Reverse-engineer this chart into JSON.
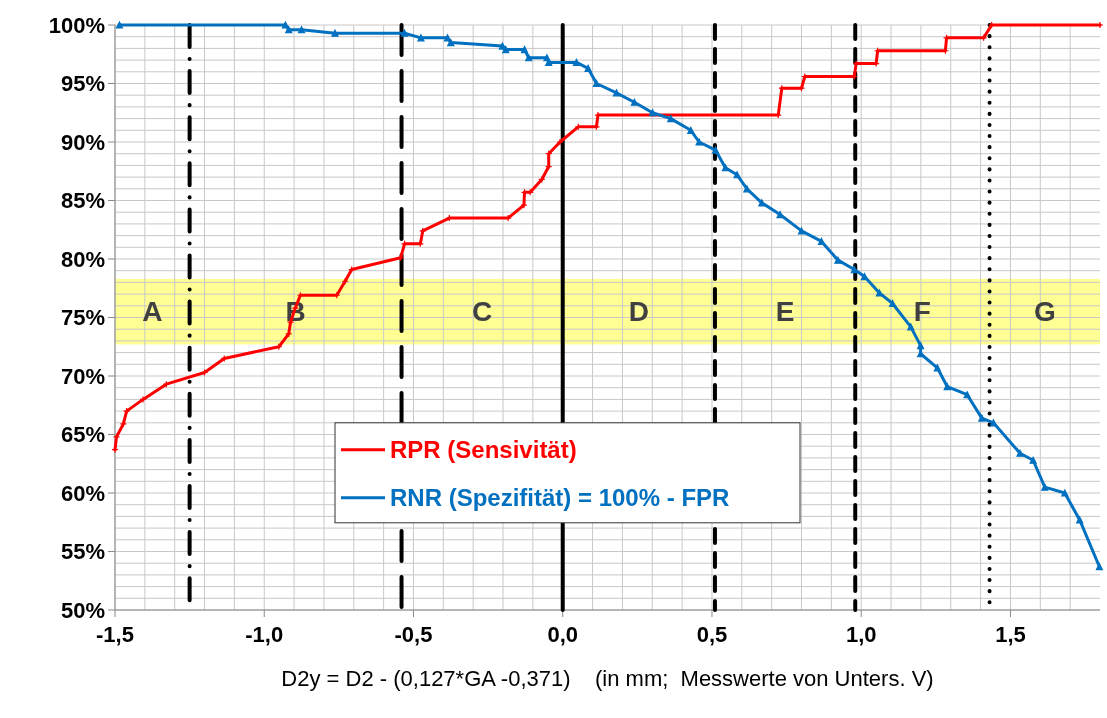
{
  "chart_data": {
    "type": "line",
    "xlabel": "D2y = D2 - (0,127*GA -0,371)    (in mm;  Messwerte von Unters. V)",
    "xlim": [
      -1.5,
      1.8
    ],
    "xticks": [
      {
        "value": -1.5,
        "label": "-1,5"
      },
      {
        "value": -1.4,
        "label": null
      },
      {
        "value": -1.3,
        "label": null
      },
      {
        "value": -1.2,
        "label": null
      },
      {
        "value": -1.1,
        "label": null
      },
      {
        "value": -1.0,
        "label": "-1,0"
      },
      {
        "value": -0.9,
        "label": null
      },
      {
        "value": -0.8,
        "label": null
      },
      {
        "value": -0.7,
        "label": null
      },
      {
        "value": -0.6,
        "label": null
      },
      {
        "value": -0.5,
        "label": "-0,5"
      },
      {
        "value": -0.4,
        "label": null
      },
      {
        "value": -0.3,
        "label": null
      },
      {
        "value": -0.2,
        "label": null
      },
      {
        "value": -0.1,
        "label": null
      },
      {
        "value": 0,
        "label": "0,0"
      },
      {
        "value": 0.1,
        "label": null
      },
      {
        "value": 0.2,
        "label": null
      },
      {
        "value": 0.3,
        "label": null
      },
      {
        "value": 0.4,
        "label": null
      },
      {
        "value": 0.5,
        "label": "0,5"
      },
      {
        "value": 0.6,
        "label": null
      },
      {
        "value": 0.7,
        "label": null
      },
      {
        "value": 0.8,
        "label": null
      },
      {
        "value": 0.9,
        "label": null
      },
      {
        "value": 1.0,
        "label": "1,0"
      },
      {
        "value": 1.1,
        "label": null
      },
      {
        "value": 1.2,
        "label": null
      },
      {
        "value": 1.3,
        "label": null
      },
      {
        "value": 1.4,
        "label": null
      },
      {
        "value": 1.5,
        "label": "1,5"
      },
      {
        "value": 1.6,
        "label": null
      },
      {
        "value": 1.7,
        "label": null
      }
    ],
    "ylim": [
      50,
      100
    ],
    "yticks": [
      {
        "value": 50,
        "label": "50%"
      },
      {
        "value": 51,
        "label": null
      },
      {
        "value": 52,
        "label": null
      },
      {
        "value": 53,
        "label": null
      },
      {
        "value": 54,
        "label": null
      },
      {
        "value": 55,
        "label": "55%"
      },
      {
        "value": 56,
        "label": null
      },
      {
        "value": 57,
        "label": null
      },
      {
        "value": 58,
        "label": null
      },
      {
        "value": 59,
        "label": null
      },
      {
        "value": 60,
        "label": "60%"
      },
      {
        "value": 61,
        "label": null
      },
      {
        "value": 62,
        "label": null
      },
      {
        "value": 63,
        "label": null
      },
      {
        "value": 64,
        "label": null
      },
      {
        "value": 65,
        "label": "65%"
      },
      {
        "value": 66,
        "label": null
      },
      {
        "value": 67,
        "label": null
      },
      {
        "value": 68,
        "label": null
      },
      {
        "value": 69,
        "label": null
      },
      {
        "value": 70,
        "label": "70%"
      },
      {
        "value": 71,
        "label": null
      },
      {
        "value": 72,
        "label": null
      },
      {
        "value": 73,
        "label": null
      },
      {
        "value": 74,
        "label": null
      },
      {
        "value": 75,
        "label": "75%"
      },
      {
        "value": 76,
        "label": null
      },
      {
        "value": 77,
        "label": null
      },
      {
        "value": 78,
        "label": null
      },
      {
        "value": 79,
        "label": null
      },
      {
        "value": 80,
        "label": "80%"
      },
      {
        "value": 81,
        "label": null
      },
      {
        "value": 82,
        "label": null
      },
      {
        "value": 83,
        "label": null
      },
      {
        "value": 84,
        "label": null
      },
      {
        "value": 85,
        "label": "85%"
      },
      {
        "value": 86,
        "label": null
      },
      {
        "value": 87,
        "label": null
      },
      {
        "value": 88,
        "label": null
      },
      {
        "value": 89,
        "label": null
      },
      {
        "value": 90,
        "label": "90%"
      },
      {
        "value": 91,
        "label": null
      },
      {
        "value": 92,
        "label": null
      },
      {
        "value": 93,
        "label": null
      },
      {
        "value": 94,
        "label": null
      },
      {
        "value": 95,
        "label": "95%"
      },
      {
        "value": 96,
        "label": null
      },
      {
        "value": 97,
        "label": null
      },
      {
        "value": 98,
        "label": null
      },
      {
        "value": 99,
        "label": null
      },
      {
        "value": 100,
        "label": "100%"
      }
    ],
    "grid": true,
    "legend": "center",
    "line_style": "solid",
    "series": [
      {
        "name": "RPR (Sensivität)",
        "color": "#ff0000",
        "marker": "cross",
        "x": [
          -1.5,
          -1.495,
          -1.472,
          -1.461,
          -1.406,
          -1.328,
          -1.2,
          -1.134,
          -0.951,
          -0.918,
          -0.912,
          -0.896,
          -0.879,
          -0.757,
          -0.729,
          -0.707,
          -0.543,
          -0.53,
          -0.477,
          -0.469,
          -0.38,
          -0.183,
          -0.13,
          -0.128,
          -0.109,
          -0.07,
          -0.047,
          -0.047,
          -0.009,
          0.052,
          0.113,
          0.118,
          0.722,
          0.734,
          0.8,
          0.811,
          0.977,
          0.983,
          1.05,
          1.055,
          1.282,
          1.286,
          1.41,
          1.437,
          1.8
        ],
        "values": [
          63.7,
          64.8,
          65.9,
          67.0,
          68.0,
          69.3,
          70.3,
          71.5,
          72.5,
          73.6,
          74.6,
          75.8,
          76.9,
          76.9,
          78.1,
          79.1,
          80.1,
          81.3,
          81.3,
          82.4,
          83.5,
          83.5,
          84.6,
          85.7,
          85.7,
          86.8,
          87.9,
          89.0,
          90.0,
          91.3,
          91.3,
          92.3,
          92.3,
          94.6,
          94.6,
          95.6,
          95.6,
          96.7,
          96.7,
          97.8,
          97.8,
          98.9,
          98.9,
          100,
          100
        ]
      },
      {
        "name": "RNR (Spezifität) = 100% - FPR",
        "color": "#0070c0",
        "marker": "triangle",
        "x": [
          -1.485,
          -0.929,
          -0.918,
          -0.875,
          -0.763,
          -0.53,
          -0.475,
          -0.386,
          -0.375,
          -0.202,
          -0.191,
          -0.128,
          -0.114,
          -0.053,
          -0.047,
          0.046,
          0.085,
          0.113,
          0.18,
          0.24,
          0.301,
          0.362,
          0.429,
          0.457,
          0.512,
          0.545,
          0.584,
          0.617,
          0.667,
          0.728,
          0.8,
          0.867,
          0.922,
          0.977,
          1.011,
          1.061,
          1.105,
          1.166,
          1.199,
          1.199,
          1.255,
          1.288,
          1.355,
          1.404,
          1.443,
          1.532,
          1.576,
          1.615,
          1.682,
          1.732,
          1.798
        ],
        "values": [
          100,
          100,
          99.6,
          99.6,
          99.3,
          99.3,
          98.9,
          98.9,
          98.5,
          98.2,
          97.9,
          97.9,
          97.2,
          97.2,
          96.8,
          96.8,
          96.3,
          95.0,
          94.2,
          93.4,
          92.5,
          92.0,
          91.0,
          90.0,
          89.3,
          87.8,
          87.2,
          86.0,
          84.8,
          83.8,
          82.4,
          81.5,
          79.9,
          79.1,
          78.5,
          77.1,
          76.2,
          74.2,
          72.6,
          71.9,
          70.7,
          69.1,
          68.4,
          66.4,
          66.0,
          63.4,
          62.8,
          60.5,
          60.0,
          57.7,
          53.7
        ]
      }
    ],
    "bands": [
      {
        "axis": "y",
        "from": 72.7,
        "to": 78.3,
        "color": "#ffff66"
      }
    ],
    "ref_lines": [
      {
        "axis": "x",
        "value": -1.25,
        "line_style": "dashdot"
      },
      {
        "axis": "x",
        "value": -0.54,
        "line_style": "longdash"
      },
      {
        "axis": "x",
        "value": 0,
        "line_style": "solid"
      },
      {
        "axis": "x",
        "value": 0.51,
        "line_style": "dashed"
      },
      {
        "axis": "x",
        "value": 0.98,
        "line_style": "dashed"
      },
      {
        "axis": "x",
        "value": 1.43,
        "line_style": "dotted"
      }
    ],
    "annotations": [
      "A",
      "B",
      "C",
      "D",
      "E",
      "F",
      "G"
    ]
  }
}
